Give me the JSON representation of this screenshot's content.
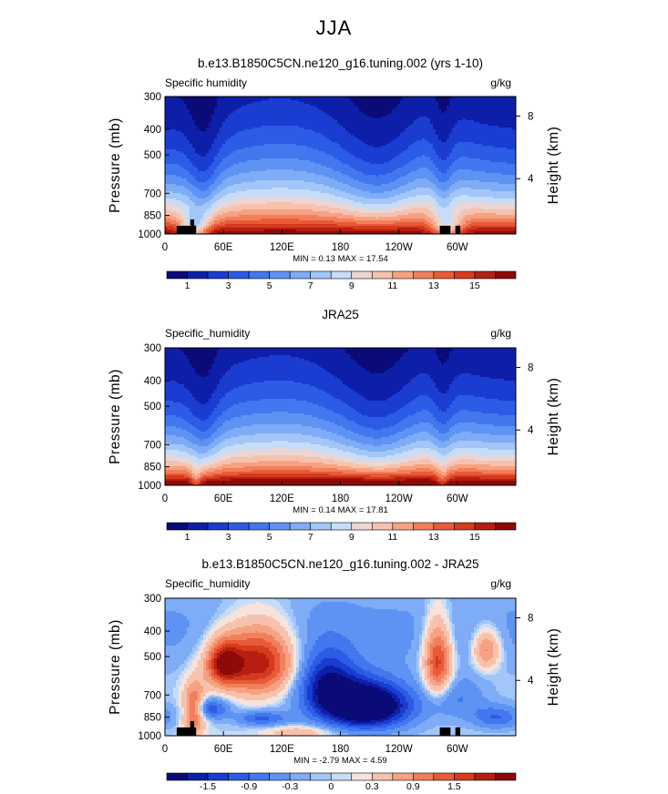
{
  "figure": {
    "suptitle": "JJA"
  },
  "chart_data": [
    {
      "type": "heatmap",
      "title": "b.e13.B1850C5CN.ne120_g16.tuning.002 (yrs 1-10)",
      "left_label": "Specific humidity",
      "right_label": "g/kg",
      "ylabel": "Pressure (mb)",
      "ylabel_right": "Height (km)",
      "xticks": [
        "0",
        "60E",
        "120E",
        "180",
        "120W",
        "60W"
      ],
      "xtick_values": [
        0,
        60,
        120,
        180,
        240,
        300
      ],
      "xlim": [
        0,
        360
      ],
      "yticks": [
        "300",
        "400",
        "500",
        "700",
        "850",
        "1000"
      ],
      "ytick_values": [
        300,
        400,
        500,
        700,
        850,
        1000
      ],
      "ylim": [
        1000,
        300
      ],
      "yscale": "log",
      "height_ticks": [
        "8",
        "4"
      ],
      "height_tick_pressures": [
        356,
        616
      ],
      "stats_text": "MIN =   0.13   MAX =   17.54",
      "min": 0.13,
      "max": 17.54,
      "colorbar_labels": [
        "1",
        "3",
        "5",
        "7",
        "9",
        "11",
        "13",
        "15"
      ],
      "colorbar_label_values": [
        1,
        3,
        5,
        7,
        9,
        11,
        13,
        15
      ],
      "levels": [
        0,
        1,
        2,
        3,
        4,
        5,
        6,
        7,
        8,
        9,
        10,
        11,
        12,
        13,
        14,
        15,
        16
      ],
      "colorbar_colors": [
        "#0a0a78",
        "#0d1fa8",
        "#1a3cd1",
        "#2c5be5",
        "#4277ef",
        "#5e93f4",
        "#7eacf6",
        "#a2c6f7",
        "#c7dcf8",
        "#ead6d4",
        "#f7c2ad",
        "#f6a282",
        "#f27f5b",
        "#e85a38",
        "#d63a1e",
        "#b51e10",
        "#8c0a07"
      ],
      "land_boxes": [
        {
          "lon0": 12,
          "lon1": 32,
          "p_top": 930
        },
        {
          "lon0": 26,
          "lon1": 30,
          "p_top": 880
        },
        {
          "lon0": 282,
          "lon1": 293,
          "p_top": 930
        },
        {
          "lon0": 298,
          "lon1": 303,
          "p_top": 930
        }
      ]
    },
    {
      "type": "heatmap",
      "title": "JRA25",
      "left_label": "Specific_humidity",
      "right_label": "g/kg",
      "ylabel": "Pressure (mb)",
      "ylabel_right": "Height (km)",
      "xticks": [
        "0",
        "60E",
        "120E",
        "180",
        "120W",
        "60W"
      ],
      "xtick_values": [
        0,
        60,
        120,
        180,
        240,
        300
      ],
      "xlim": [
        0,
        360
      ],
      "yticks": [
        "300",
        "400",
        "500",
        "700",
        "850",
        "1000"
      ],
      "ytick_values": [
        300,
        400,
        500,
        700,
        850,
        1000
      ],
      "ylim": [
        1000,
        300
      ],
      "yscale": "log",
      "height_ticks": [
        "8",
        "4"
      ],
      "height_tick_pressures": [
        356,
        616
      ],
      "stats_text": "MIN =   0.14   MAX =   17.81",
      "min": 0.14,
      "max": 17.81,
      "colorbar_labels": [
        "1",
        "3",
        "5",
        "7",
        "9",
        "11",
        "13",
        "15"
      ],
      "colorbar_label_values": [
        1,
        3,
        5,
        7,
        9,
        11,
        13,
        15
      ],
      "levels": [
        0,
        1,
        2,
        3,
        4,
        5,
        6,
        7,
        8,
        9,
        10,
        11,
        12,
        13,
        14,
        15,
        16
      ],
      "colorbar_colors": [
        "#0a0a78",
        "#0d1fa8",
        "#1a3cd1",
        "#2c5be5",
        "#4277ef",
        "#5e93f4",
        "#7eacf6",
        "#a2c6f7",
        "#c7dcf8",
        "#ead6d4",
        "#f7c2ad",
        "#f6a282",
        "#f27f5b",
        "#e85a38",
        "#d63a1e",
        "#b51e10",
        "#8c0a07"
      ],
      "land_boxes": []
    },
    {
      "type": "heatmap",
      "title": "b.e13.B1850C5CN.ne120_g16.tuning.002 - JRA25",
      "left_label": "Specific_humidity",
      "right_label": "g/kg",
      "ylabel": "Pressure (mb)",
      "ylabel_right": "Height (km)",
      "xticks": [
        "0",
        "60E",
        "120E",
        "180",
        "120W",
        "60W"
      ],
      "xtick_values": [
        0,
        60,
        120,
        180,
        240,
        300
      ],
      "xlim": [
        0,
        360
      ],
      "yticks": [
        "300",
        "400",
        "500",
        "700",
        "850",
        "1000"
      ],
      "ytick_values": [
        300,
        400,
        500,
        700,
        850,
        1000
      ],
      "ylim": [
        1000,
        300
      ],
      "yscale": "log",
      "height_ticks": [
        "8",
        "4"
      ],
      "height_tick_pressures": [
        356,
        616
      ],
      "stats_text": "MIN =  -2.79   MAX =   4.59",
      "min": -2.79,
      "max": 4.59,
      "colorbar_labels": [
        "-1.5",
        "-0.9",
        "-0.3",
        "0",
        "0.3",
        "0.9",
        "1.5"
      ],
      "colorbar_label_values": [
        -1.5,
        -0.9,
        -0.3,
        0,
        0.3,
        0.9,
        1.5
      ],
      "levels": [
        -2.1,
        -1.8,
        -1.5,
        -1.2,
        -0.9,
        -0.6,
        -0.3,
        -0.1,
        0,
        0.1,
        0.3,
        0.6,
        0.9,
        1.2,
        1.5,
        1.8,
        2.1
      ],
      "colorbar_colors": [
        "#0a0a78",
        "#0d1fa8",
        "#1a3cd1",
        "#2c5be5",
        "#4277ef",
        "#5e93f4",
        "#7eacf6",
        "#a2c6f7",
        "#c7dcf8",
        "#f5e3dc",
        "#f7c2ad",
        "#f6a282",
        "#f27f5b",
        "#e85a38",
        "#d63a1e",
        "#b51e10",
        "#8c0a07"
      ],
      "land_boxes": [
        {
          "lon0": 12,
          "lon1": 32,
          "p_top": 930
        },
        {
          "lon0": 26,
          "lon1": 30,
          "p_top": 880
        },
        {
          "lon0": 282,
          "lon1": 293,
          "p_top": 930
        },
        {
          "lon0": 298,
          "lon1": 303,
          "p_top": 930
        }
      ]
    }
  ]
}
